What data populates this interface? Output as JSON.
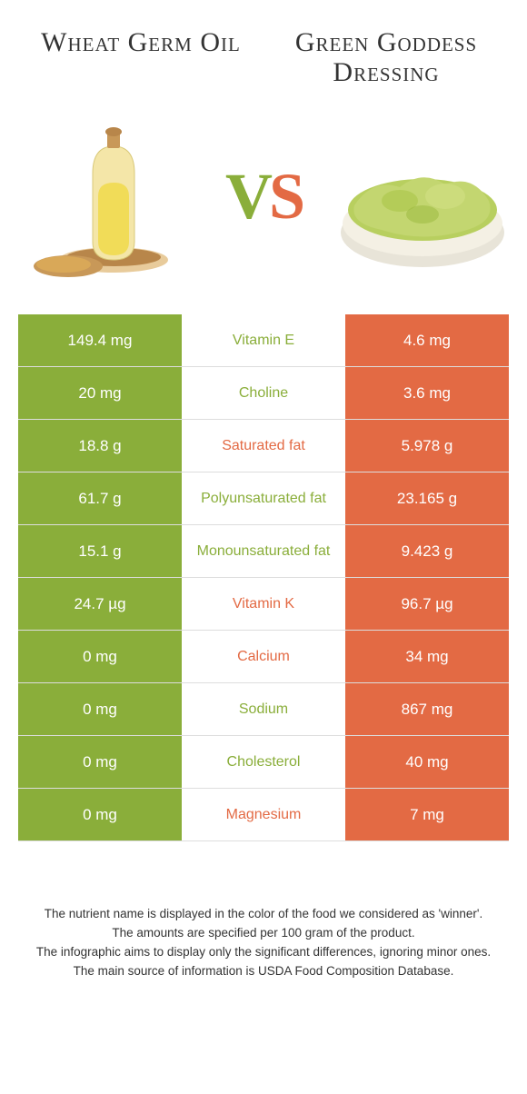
{
  "header": {
    "left_title": "Wheat Germ Oil",
    "right_title": "Green Goddess Dressing"
  },
  "hero": {
    "left_alt": "wheat germ oil bottle",
    "right_alt": "green goddess dressing bowl",
    "vs_v": "V",
    "vs_s": "S"
  },
  "colors": {
    "left": "#8aae3a",
    "right": "#e36a44",
    "text": "#333333",
    "row_border": "#dddddd"
  },
  "rows": [
    {
      "nutrient": "Vitamin E",
      "left": "149.4 mg",
      "right": "4.6 mg",
      "winner": "left"
    },
    {
      "nutrient": "Choline",
      "left": "20 mg",
      "right": "3.6 mg",
      "winner": "left"
    },
    {
      "nutrient": "Saturated fat",
      "left": "18.8 g",
      "right": "5.978 g",
      "winner": "right"
    },
    {
      "nutrient": "Polyunsaturated fat",
      "left": "61.7 g",
      "right": "23.165 g",
      "winner": "left"
    },
    {
      "nutrient": "Monounsaturated fat",
      "left": "15.1 g",
      "right": "9.423 g",
      "winner": "left"
    },
    {
      "nutrient": "Vitamin K",
      "left": "24.7 µg",
      "right": "96.7 µg",
      "winner": "right"
    },
    {
      "nutrient": "Calcium",
      "left": "0 mg",
      "right": "34 mg",
      "winner": "right"
    },
    {
      "nutrient": "Sodium",
      "left": "0 mg",
      "right": "867 mg",
      "winner": "left"
    },
    {
      "nutrient": "Cholesterol",
      "left": "0 mg",
      "right": "40 mg",
      "winner": "left"
    },
    {
      "nutrient": "Magnesium",
      "left": "0 mg",
      "right": "7 mg",
      "winner": "right"
    }
  ],
  "footer": {
    "line1": "The nutrient name is displayed in the color of the food we considered as 'winner'.",
    "line2": "The amounts are specified per 100 gram of the product.",
    "line3": "The infographic aims to display only the significant differences, ignoring minor ones.",
    "line4": "The main source of information is USDA Food Composition Database."
  }
}
